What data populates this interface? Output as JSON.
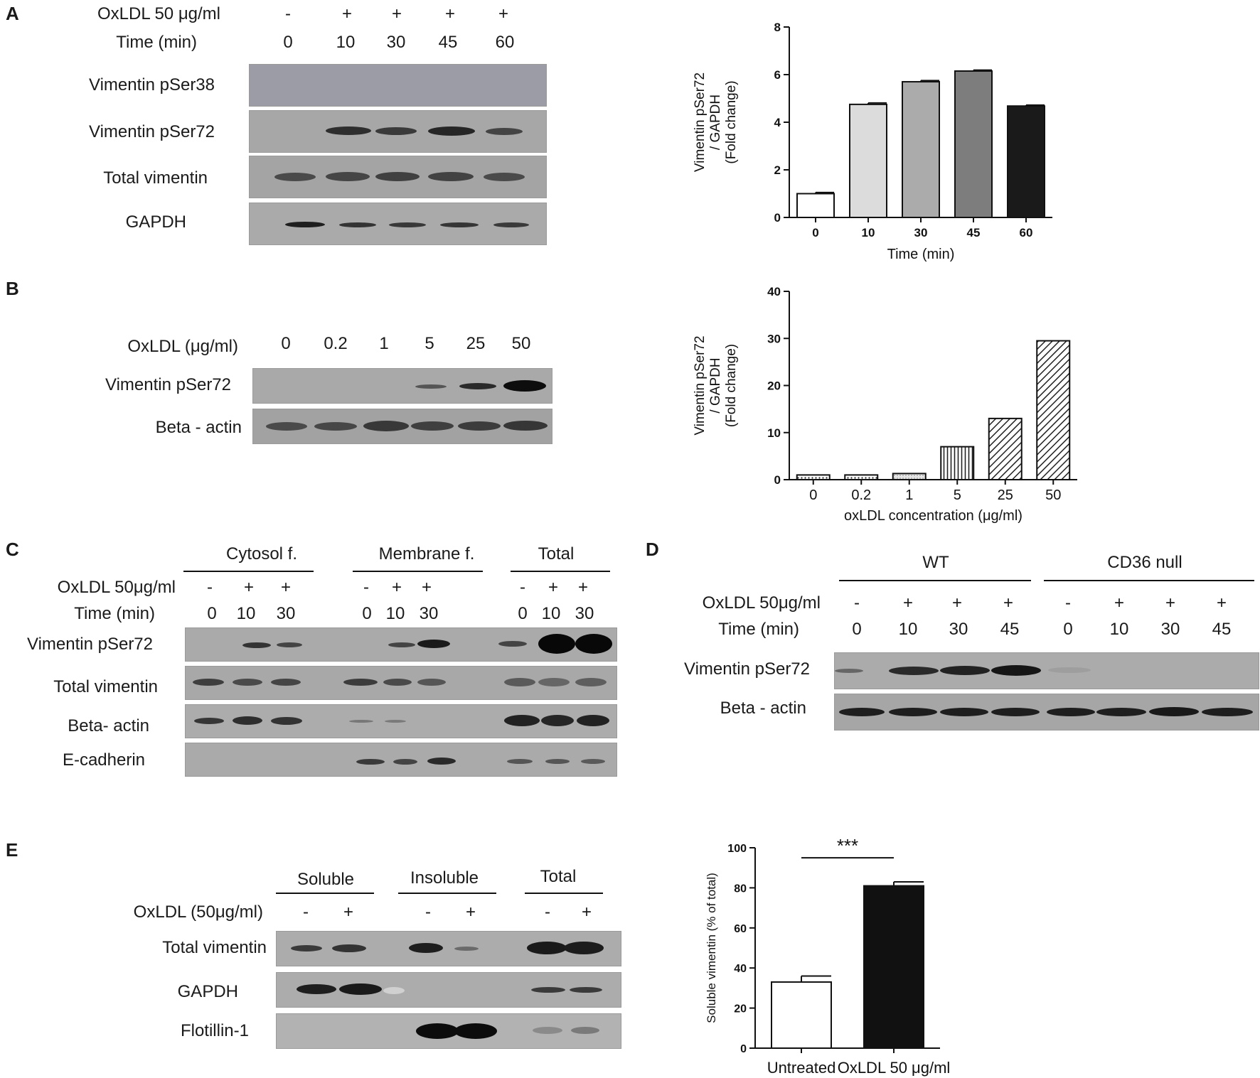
{
  "panels": {
    "A": {
      "letter": "A",
      "row_labels": {
        "treatment": "OxLDL 50 μg/ml",
        "time": "Time (min)"
      },
      "treatment_marks": [
        "-",
        "+",
        "+",
        "+",
        "+"
      ],
      "time_values": [
        "0",
        "10",
        "30",
        "45",
        "60"
      ],
      "blots": [
        "Vimentin pSer38",
        "Vimentin pSer72",
        "Total vimentin",
        "GAPDH"
      ]
    },
    "B": {
      "letter": "B",
      "row_labels": {
        "treatment": "OxLDL (μg/ml)"
      },
      "conc_values": [
        "0",
        "0.2",
        "1",
        "5",
        "25",
        "50"
      ],
      "blots": [
        "Vimentin pSer72",
        "Beta - actin"
      ]
    },
    "C": {
      "letter": "C",
      "groups": [
        "Cytosol f.",
        "Membrane f.",
        "Total"
      ],
      "row_labels": {
        "treatment": "OxLDL 50μg/ml",
        "time": "Time (min)"
      },
      "treatment_marks": [
        "-",
        "+",
        "+"
      ],
      "time_values": [
        "0",
        "10",
        "30"
      ],
      "blots": [
        "Vimentin pSer72",
        "Total vimentin",
        "Beta- actin",
        "E-cadherin"
      ]
    },
    "D": {
      "letter": "D",
      "groups": [
        "WT",
        "CD36 null"
      ],
      "row_labels": {
        "treatment": "OxLDL 50μg/ml",
        "time": "Time (min)"
      },
      "treatment_marks": [
        "-",
        "+",
        "+",
        "+"
      ],
      "time_values": [
        "0",
        "10",
        "30",
        "45"
      ],
      "blots": [
        "Vimentin pSer72",
        "Beta - actin"
      ]
    },
    "E": {
      "letter": "E",
      "groups": [
        "Soluble",
        "Insoluble",
        "Total"
      ],
      "row_labels": {
        "treatment": "OxLDL (50μg/ml)"
      },
      "treatment_marks": [
        "-",
        "+"
      ],
      "blots": [
        "Total vimentin",
        "GAPDH",
        "Flotillin-1"
      ]
    }
  },
  "chart_data": [
    {
      "id": "A",
      "type": "bar",
      "categories": [
        "0",
        "10",
        "30",
        "45",
        "60"
      ],
      "values": [
        1.0,
        4.75,
        5.7,
        6.15,
        4.68
      ],
      "errors": [
        0.05,
        0.06,
        0.05,
        0.04,
        0.04
      ],
      "fills": [
        "#ffffff",
        "#dcdcdc",
        "#ababab",
        "#7d7d7d",
        "#1a1a1a"
      ],
      "ylabel_lines": [
        "Vimentin pSer72",
        "/ GAPDH",
        "(Fold change)"
      ],
      "xlabel": "Time (min)",
      "ylim": [
        0,
        8
      ],
      "yticks": [
        0,
        2,
        4,
        6,
        8
      ]
    },
    {
      "id": "B",
      "type": "bar",
      "categories": [
        "0",
        "0.2",
        "1",
        "5",
        "25",
        "50"
      ],
      "values": [
        1.0,
        1.0,
        1.3,
        7.0,
        13.0,
        29.5
      ],
      "patterns": [
        "dots",
        "dots",
        "light",
        "vert",
        "diag",
        "diag"
      ],
      "ylabel_lines": [
        "Vimentin pSer72",
        "/ GAPDH",
        "(Fold change)"
      ],
      "xlabel": "oxLDL concentration (μg/ml)",
      "ylim": [
        0,
        40
      ],
      "yticks": [
        0,
        10,
        20,
        30,
        40
      ]
    },
    {
      "id": "E",
      "type": "bar",
      "categories": [
        "Untreated",
        "OxLDL 50 μg/ml"
      ],
      "values": [
        33,
        81
      ],
      "errors": [
        3,
        2
      ],
      "fills": [
        "#ffffff",
        "#111111"
      ],
      "ylabel_lines": [
        "Soluble vimentin (% of total)"
      ],
      "ylim": [
        0,
        100
      ],
      "yticks": [
        0,
        20,
        40,
        60,
        80,
        100
      ],
      "annotation": "***"
    }
  ]
}
